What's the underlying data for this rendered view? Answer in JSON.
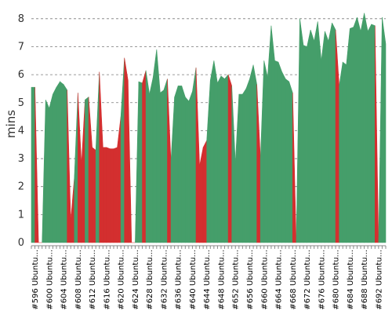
{
  "chart_data": {
    "type": "area",
    "ylabel": "mins",
    "ylim": [
      0,
      8.5
    ],
    "yticks": [
      0,
      1,
      2,
      3,
      4,
      5,
      6,
      7,
      8
    ],
    "xticks": [
      "#596 Ubuntu...",
      "#600 Ubuntu...",
      "#604 Ubuntu...",
      "#608 Ubuntu...",
      "#612 Ubuntu...",
      "#616 Ubuntu...",
      "#620 Ubuntu...",
      "#624 Ubuntu...",
      "#628 Ubuntu...",
      "#632 Ubuntu...",
      "#636 Ubuntu...",
      "#640 Ubuntu...",
      "#644 Ubuntu...",
      "#648 Ubuntu...",
      "#652 Ubuntu...",
      "#656 Ubuntu...",
      "#660 Ubuntu...",
      "#664 Ubuntu...",
      "#668 Ubuntu...",
      "#672 Ubuntu...",
      "#676 Ubuntu...",
      "#680 Ubuntu...",
      "#684 Ubuntu...",
      "#688 Ubuntu...",
      "#692 Ubuntu..."
    ],
    "x_start": 595,
    "x_end": 694,
    "grid": true,
    "colors": {
      "passed": "#459e6a",
      "failed": "#d32f2f"
    },
    "points": [
      {
        "x": 595,
        "y": 5.55,
        "s": "passed"
      },
      {
        "x": 596,
        "y": 5.55,
        "s": "passed"
      },
      {
        "x": 597,
        "y": 0,
        "s": "failed"
      },
      {
        "x": 598,
        "y": 0,
        "s": "failed"
      },
      {
        "x": 599,
        "y": 5.1,
        "s": "passed"
      },
      {
        "x": 600,
        "y": 4.8,
        "s": "passed"
      },
      {
        "x": 601,
        "y": 5.3,
        "s": "passed"
      },
      {
        "x": 602,
        "y": 5.55,
        "s": "passed"
      },
      {
        "x": 603,
        "y": 5.75,
        "s": "passed"
      },
      {
        "x": 604,
        "y": 5.65,
        "s": "passed"
      },
      {
        "x": 605,
        "y": 5.45,
        "s": "passed"
      },
      {
        "x": 606,
        "y": 0.8,
        "s": "failed"
      },
      {
        "x": 607,
        "y": 2.3,
        "s": "failed"
      },
      {
        "x": 608,
        "y": 5.35,
        "s": "passed"
      },
      {
        "x": 609,
        "y": 2.8,
        "s": "failed"
      },
      {
        "x": 610,
        "y": 5.1,
        "s": "failed"
      },
      {
        "x": 611,
        "y": 5.2,
        "s": "passed"
      },
      {
        "x": 612,
        "y": 3.4,
        "s": "failed"
      },
      {
        "x": 613,
        "y": 3.3,
        "s": "failed"
      },
      {
        "x": 614,
        "y": 6.1,
        "s": "passed"
      },
      {
        "x": 615,
        "y": 3.4,
        "s": "failed"
      },
      {
        "x": 616,
        "y": 3.4,
        "s": "failed"
      },
      {
        "x": 617,
        "y": 3.35,
        "s": "failed"
      },
      {
        "x": 618,
        "y": 3.35,
        "s": "failed"
      },
      {
        "x": 619,
        "y": 3.4,
        "s": "failed"
      },
      {
        "x": 620,
        "y": 4.5,
        "s": "failed"
      },
      {
        "x": 621,
        "y": 6.6,
        "s": "passed"
      },
      {
        "x": 622,
        "y": 5.8,
        "s": "failed"
      },
      {
        "x": 623,
        "y": 0,
        "s": "failed"
      },
      {
        "x": 624,
        "y": 0,
        "s": "failed"
      },
      {
        "x": 625,
        "y": 5.75,
        "s": "passed"
      },
      {
        "x": 626,
        "y": 5.7,
        "s": "passed"
      },
      {
        "x": 627,
        "y": 6.15,
        "s": "failed"
      },
      {
        "x": 628,
        "y": 5.3,
        "s": "passed"
      },
      {
        "x": 629,
        "y": 5.9,
        "s": "passed"
      },
      {
        "x": 630,
        "y": 6.9,
        "s": "passed"
      },
      {
        "x": 631,
        "y": 5.35,
        "s": "passed"
      },
      {
        "x": 632,
        "y": 5.45,
        "s": "passed"
      },
      {
        "x": 633,
        "y": 5.85,
        "s": "passed"
      },
      {
        "x": 634,
        "y": 2.9,
        "s": "failed"
      },
      {
        "x": 635,
        "y": 5.2,
        "s": "passed"
      },
      {
        "x": 636,
        "y": 5.6,
        "s": "passed"
      },
      {
        "x": 637,
        "y": 5.6,
        "s": "passed"
      },
      {
        "x": 638,
        "y": 5.2,
        "s": "passed"
      },
      {
        "x": 639,
        "y": 5.05,
        "s": "passed"
      },
      {
        "x": 640,
        "y": 5.4,
        "s": "passed"
      },
      {
        "x": 641,
        "y": 6.25,
        "s": "passed"
      },
      {
        "x": 642,
        "y": 2.75,
        "s": "failed"
      },
      {
        "x": 643,
        "y": 3.4,
        "s": "failed"
      },
      {
        "x": 644,
        "y": 3.65,
        "s": "failed"
      },
      {
        "x": 645,
        "y": 5.8,
        "s": "passed"
      },
      {
        "x": 646,
        "y": 6.5,
        "s": "passed"
      },
      {
        "x": 647,
        "y": 5.7,
        "s": "passed"
      },
      {
        "x": 648,
        "y": 5.95,
        "s": "passed"
      },
      {
        "x": 649,
        "y": 5.85,
        "s": "passed"
      },
      {
        "x": 650,
        "y": 6.0,
        "s": "passed"
      },
      {
        "x": 651,
        "y": 5.6,
        "s": "failed"
      },
      {
        "x": 652,
        "y": 2.85,
        "s": "passed"
      },
      {
        "x": 653,
        "y": 5.3,
        "s": "passed"
      },
      {
        "x": 654,
        "y": 5.3,
        "s": "passed"
      },
      {
        "x": 655,
        "y": 5.5,
        "s": "passed"
      },
      {
        "x": 656,
        "y": 5.85,
        "s": "passed"
      },
      {
        "x": 657,
        "y": 6.35,
        "s": "passed"
      },
      {
        "x": 658,
        "y": 5.65,
        "s": "passed"
      },
      {
        "x": 659,
        "y": 3.0,
        "s": "failed"
      },
      {
        "x": 660,
        "y": 6.5,
        "s": "passed"
      },
      {
        "x": 661,
        "y": 5.9,
        "s": "passed"
      },
      {
        "x": 662,
        "y": 7.75,
        "s": "passed"
      },
      {
        "x": 663,
        "y": 6.5,
        "s": "passed"
      },
      {
        "x": 664,
        "y": 6.45,
        "s": "passed"
      },
      {
        "x": 665,
        "y": 6.1,
        "s": "passed"
      },
      {
        "x": 666,
        "y": 5.85,
        "s": "passed"
      },
      {
        "x": 667,
        "y": 5.75,
        "s": "passed"
      },
      {
        "x": 668,
        "y": 5.35,
        "s": "passed"
      },
      {
        "x": 669,
        "y": 0,
        "s": "failed"
      },
      {
        "x": 670,
        "y": 8.0,
        "s": "passed"
      },
      {
        "x": 671,
        "y": 7.05,
        "s": "passed"
      },
      {
        "x": 672,
        "y": 7.0,
        "s": "passed"
      },
      {
        "x": 673,
        "y": 7.6,
        "s": "passed"
      },
      {
        "x": 674,
        "y": 7.2,
        "s": "passed"
      },
      {
        "x": 675,
        "y": 7.9,
        "s": "passed"
      },
      {
        "x": 676,
        "y": 6.5,
        "s": "passed"
      },
      {
        "x": 677,
        "y": 7.55,
        "s": "passed"
      },
      {
        "x": 678,
        "y": 7.2,
        "s": "passed"
      },
      {
        "x": 679,
        "y": 7.85,
        "s": "passed"
      },
      {
        "x": 680,
        "y": 7.6,
        "s": "passed"
      },
      {
        "x": 681,
        "y": 5.6,
        "s": "failed"
      },
      {
        "x": 682,
        "y": 6.45,
        "s": "passed"
      },
      {
        "x": 683,
        "y": 6.35,
        "s": "passed"
      },
      {
        "x": 684,
        "y": 7.65,
        "s": "passed"
      },
      {
        "x": 685,
        "y": 7.7,
        "s": "passed"
      },
      {
        "x": 686,
        "y": 8.05,
        "s": "passed"
      },
      {
        "x": 687,
        "y": 7.55,
        "s": "passed"
      },
      {
        "x": 688,
        "y": 8.2,
        "s": "passed"
      },
      {
        "x": 689,
        "y": 7.55,
        "s": "passed"
      },
      {
        "x": 690,
        "y": 7.8,
        "s": "passed"
      },
      {
        "x": 691,
        "y": 7.75,
        "s": "passed"
      },
      {
        "x": 692,
        "y": 0,
        "s": "failed"
      },
      {
        "x": 693,
        "y": 8.05,
        "s": "passed"
      },
      {
        "x": 694,
        "y": 7.1,
        "s": "passed"
      }
    ]
  }
}
